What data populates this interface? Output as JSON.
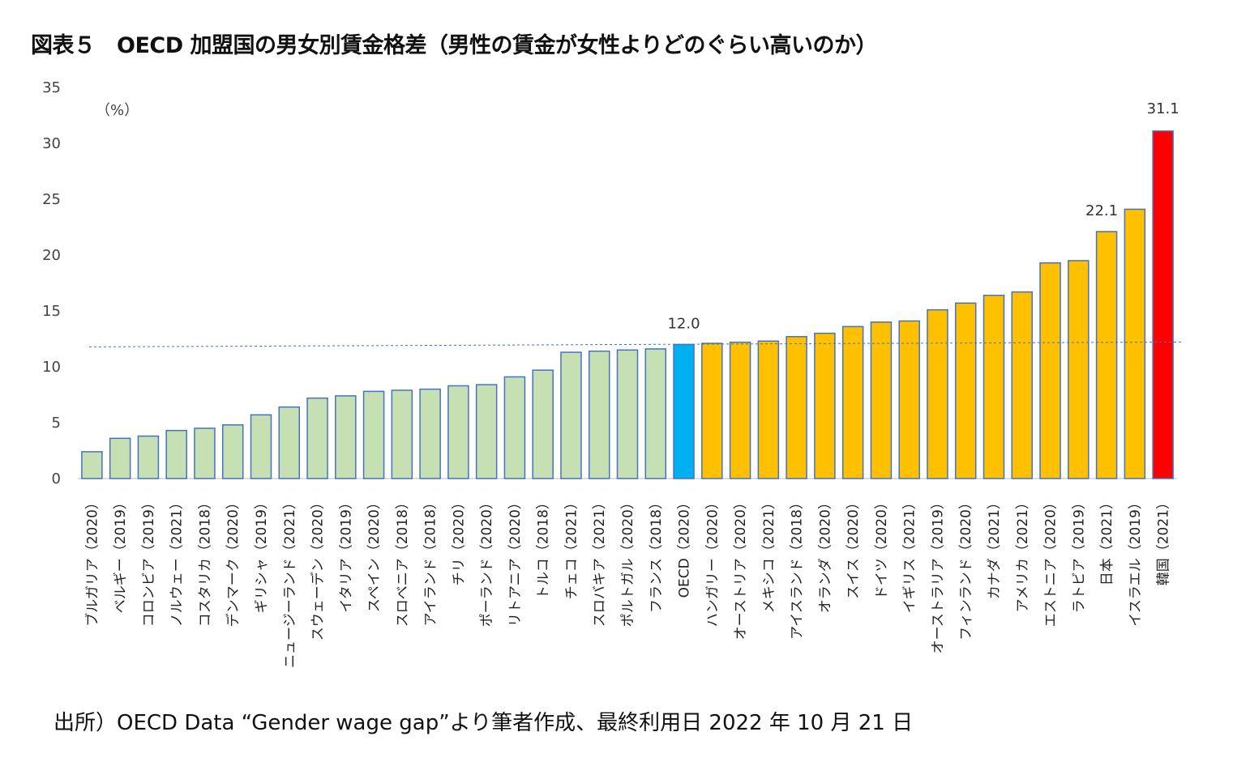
{
  "title": "図表５　OECD 加盟国の男女別賃金格差（男性の賃金が女性よりどのぐらい高いのか）",
  "source": "出所）OECD Data “Gender wage gap”より筆者作成、最終利用日 2022 年 10 月 21 日",
  "chart_data": {
    "type": "bar",
    "title": "図表５　OECD 加盟国の男女別賃金格差（男性の賃金が女性よりどのぐらい高いのか）",
    "ylabel": "（%）",
    "ylim": [
      0,
      35
    ],
    "yticks": [
      0,
      5,
      10,
      15,
      20,
      25,
      30,
      35
    ],
    "grid": false,
    "categories": [
      "ブルガリア（2020）",
      "ベルギー（2019）",
      "コロンビア（2019）",
      "ノルウェー（2021）",
      "コスタリカ（2018）",
      "デンマーク（2020）",
      "ギリシャ（2019）",
      "ニュージーランド（2021）",
      "スウェーデン（2020）",
      "イタリア（2019）",
      "スペイン（2020）",
      "スロベニア（2018）",
      "アイランド（2018）",
      "チリ（2020）",
      "ポーランド（2020）",
      "リトアニア（2020）",
      "トルコ（2018）",
      "チェコ（2021）",
      "スロバキア（2021）",
      "ポルトガル（2020）",
      "フランス（2018）",
      "OECD（2020）",
      "ハンガリー（2020）",
      "オーストリア（2020）",
      "メキシコ（2021）",
      "アイスランド（2018）",
      "オランダ（2020）",
      "スイス（2020）",
      "ドイツ（2020）",
      "イギリス（2021）",
      "オーストラリア（2019）",
      "フィンランド（2020）",
      "カナダ（2021）",
      "アメリカ（2021）",
      "エストニア（2020）",
      "ラトビア（2019）",
      "日本（2021）",
      "イスラエル（2019）",
      "韓国（2021）"
    ],
    "values": [
      2.4,
      3.6,
      3.8,
      4.3,
      4.5,
      4.8,
      5.7,
      6.4,
      7.2,
      7.4,
      7.8,
      7.9,
      8.0,
      8.3,
      8.4,
      9.1,
      9.7,
      11.3,
      11.4,
      11.5,
      11.6,
      12.0,
      12.1,
      12.2,
      12.3,
      12.7,
      13.0,
      13.6,
      14.0,
      14.1,
      15.1,
      15.7,
      16.4,
      16.7,
      19.3,
      19.5,
      22.1,
      24.1,
      31.1
    ],
    "data_labels": {
      "21": "12.0",
      "36": "22.1",
      "38": "31.1"
    },
    "reference_line": {
      "value": 12.0,
      "style": "dashed",
      "color": "#4472c4"
    },
    "colors": {
      "below_oecd": "#c6e0b4",
      "oecd": "#00b0f0",
      "above_oecd": "#ffc000",
      "korea": "#ff0000",
      "outline": "#4472c4"
    }
  }
}
